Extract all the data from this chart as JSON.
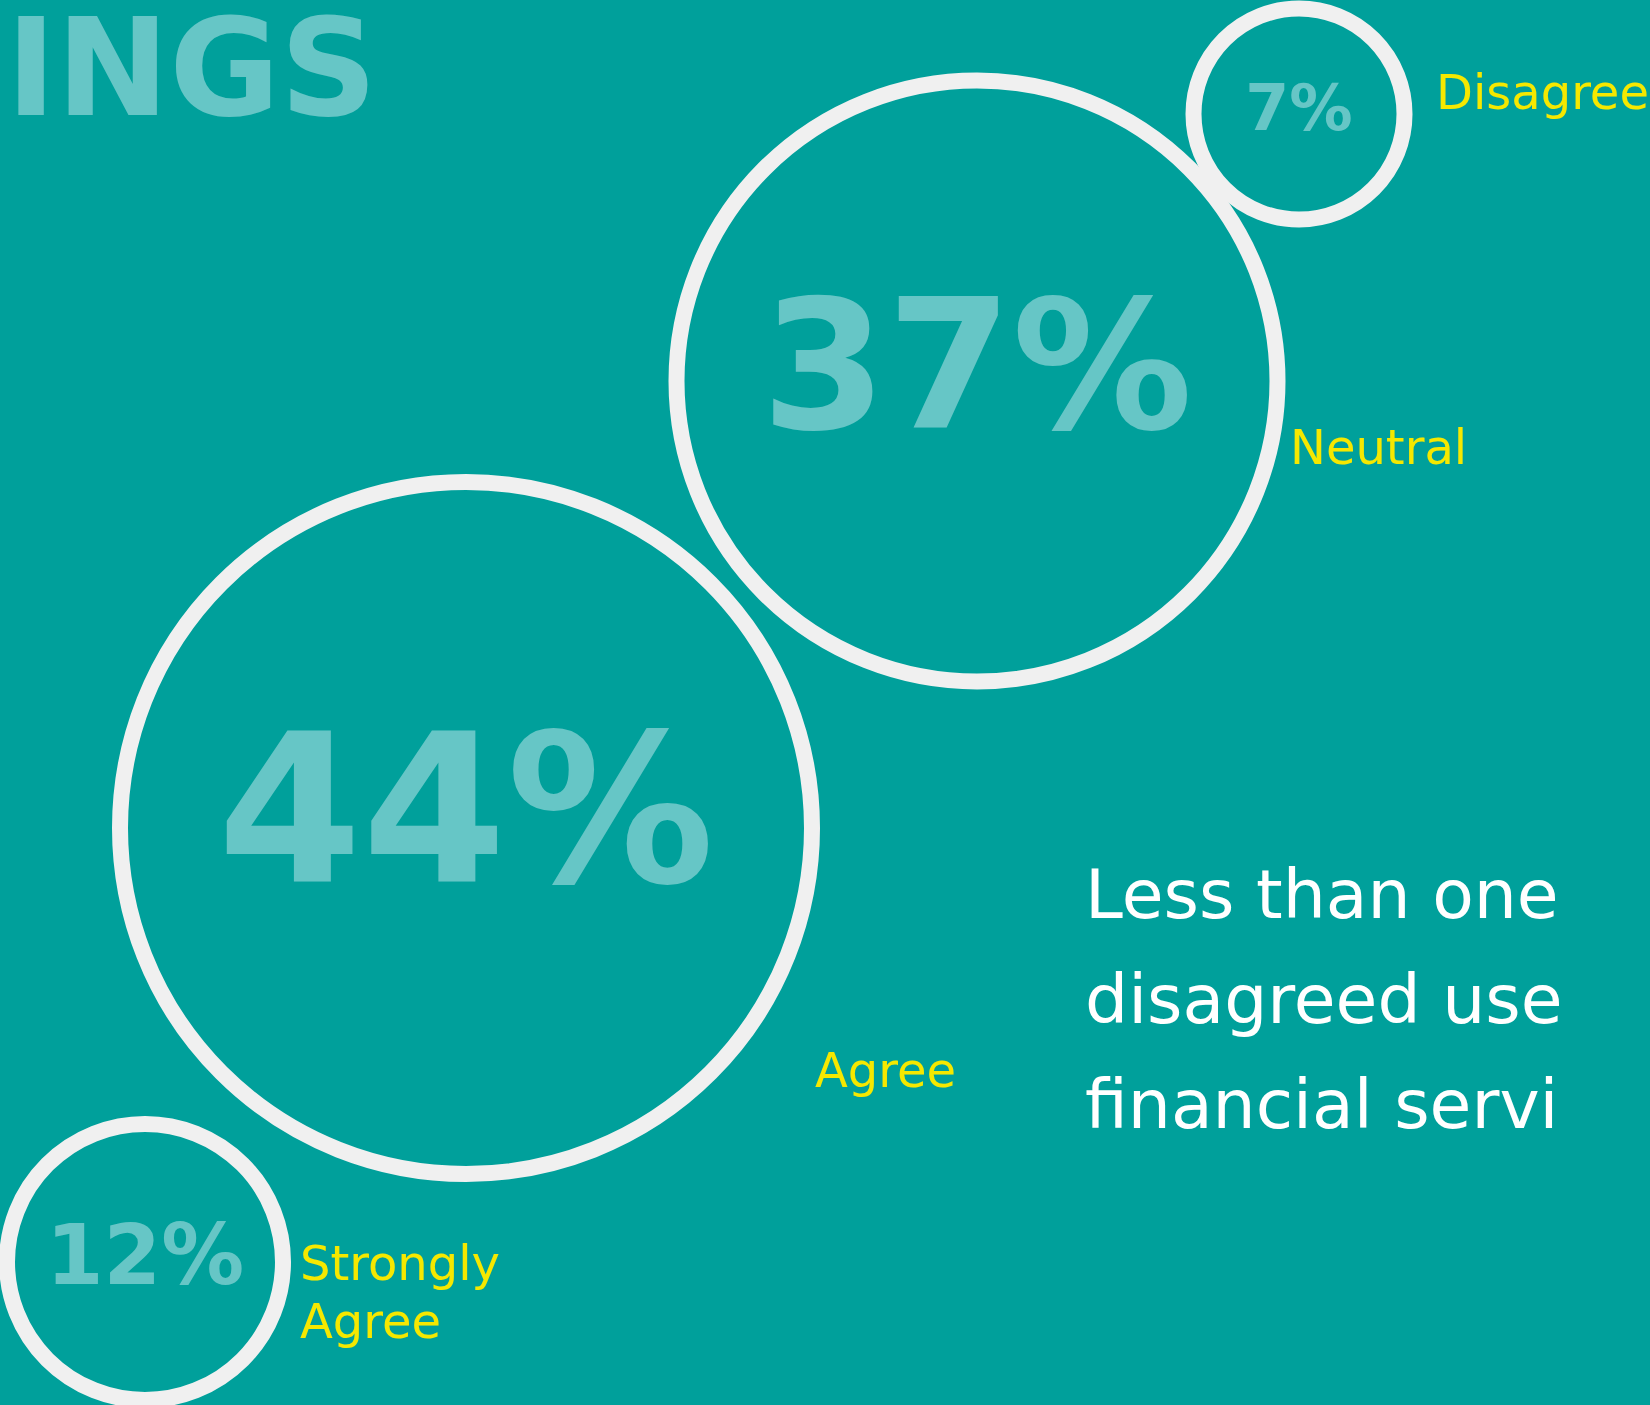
{
  "chart_data": {
    "type": "other",
    "title": "INGS",
    "categories": [
      "Disagree",
      "Neutral",
      "Agree",
      "Strongly Agree"
    ],
    "values": [
      7,
      37,
      44,
      12
    ],
    "value_labels": [
      "7%",
      "37%",
      "44%",
      "12%"
    ],
    "annotations": [
      "Less than one",
      "disagreed use",
      "financial servi"
    ]
  }
}
